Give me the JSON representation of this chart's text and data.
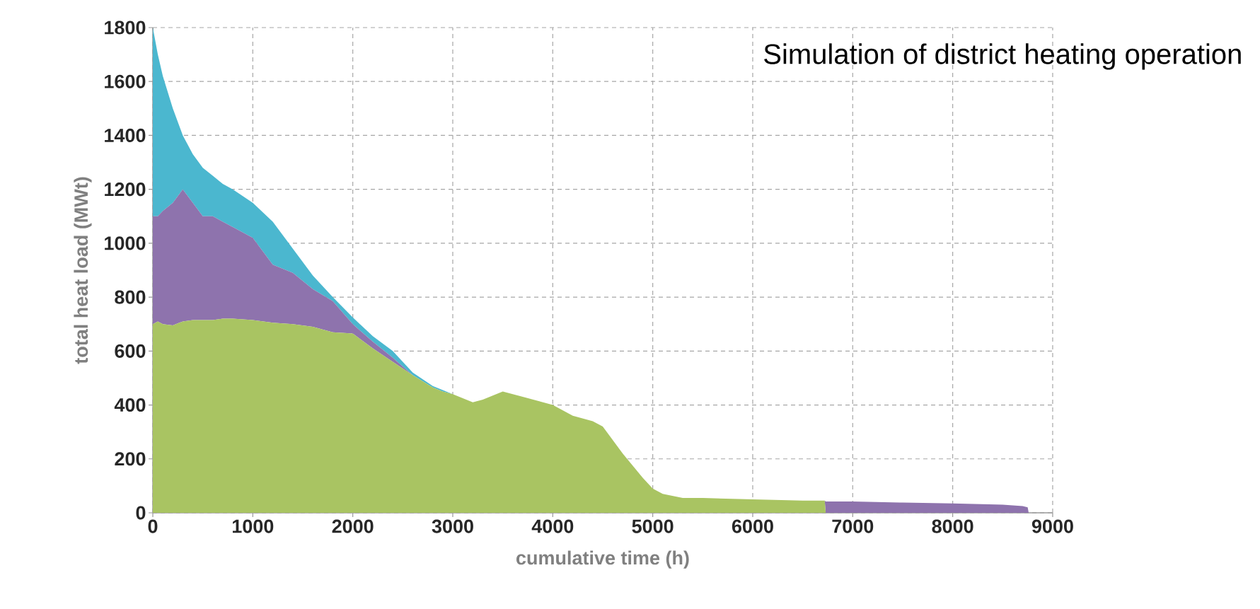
{
  "chart_data": {
    "type": "area",
    "title": "Simulation of district heating operation",
    "xlabel": "cumulative time (h)",
    "ylabel": "total heat load (MWt)",
    "stacked": true,
    "grid": true,
    "xlim": [
      0,
      9000
    ],
    "xticks": [
      0,
      1000,
      2000,
      3000,
      4000,
      5000,
      6000,
      7000,
      8000,
      9000
    ],
    "ylim": [
      0,
      1800
    ],
    "yticks": [
      0,
      200,
      400,
      600,
      800,
      1000,
      1200,
      1400,
      1600,
      1800
    ],
    "x": [
      0,
      50,
      100,
      200,
      300,
      400,
      500,
      600,
      700,
      800,
      1000,
      1200,
      1400,
      1600,
      1800,
      2000,
      2200,
      2400,
      2600,
      2800,
      2900,
      3000,
      3200,
      3300,
      3500,
      3700,
      4000,
      4200,
      4400,
      4500,
      4700,
      4900,
      5000,
      5100,
      5300,
      5500,
      6000,
      6500,
      6720,
      6730,
      7000,
      7500,
      8000,
      8500,
      8700,
      8750,
      8760
    ],
    "series": [
      {
        "color": "#a9c462",
        "values": [
          700,
          710,
          700,
          695,
          710,
          715,
          715,
          715,
          720,
          720,
          715,
          705,
          700,
          690,
          670,
          665,
          610,
          560,
          510,
          465,
          450,
          440,
          410,
          420,
          450,
          430,
          400,
          360,
          340,
          320,
          220,
          130,
          90,
          70,
          55,
          55,
          50,
          45,
          45,
          0,
          0,
          0,
          0,
          0,
          0,
          0,
          0
        ]
      },
      {
        "color": "#8e73ad",
        "values": [
          400,
          390,
          420,
          455,
          490,
          435,
          385,
          385,
          360,
          340,
          305,
          215,
          190,
          140,
          115,
          35,
          25,
          15,
          0,
          0,
          0,
          0,
          0,
          0,
          0,
          0,
          0,
          0,
          0,
          0,
          0,
          0,
          0,
          0,
          0,
          0,
          0,
          0,
          0,
          42,
          42,
          38,
          35,
          30,
          25,
          20,
          0
        ]
      },
      {
        "color": "#4bb7cf",
        "values": [
          700,
          600,
          500,
          350,
          200,
          180,
          180,
          150,
          140,
          140,
          130,
          160,
          90,
          50,
          15,
          25,
          20,
          25,
          10,
          5,
          5,
          0,
          0,
          0,
          0,
          0,
          0,
          0,
          0,
          0,
          0,
          0,
          0,
          0,
          0,
          0,
          0,
          0,
          0,
          0,
          0,
          0,
          0,
          0,
          0,
          0,
          0
        ]
      }
    ]
  }
}
